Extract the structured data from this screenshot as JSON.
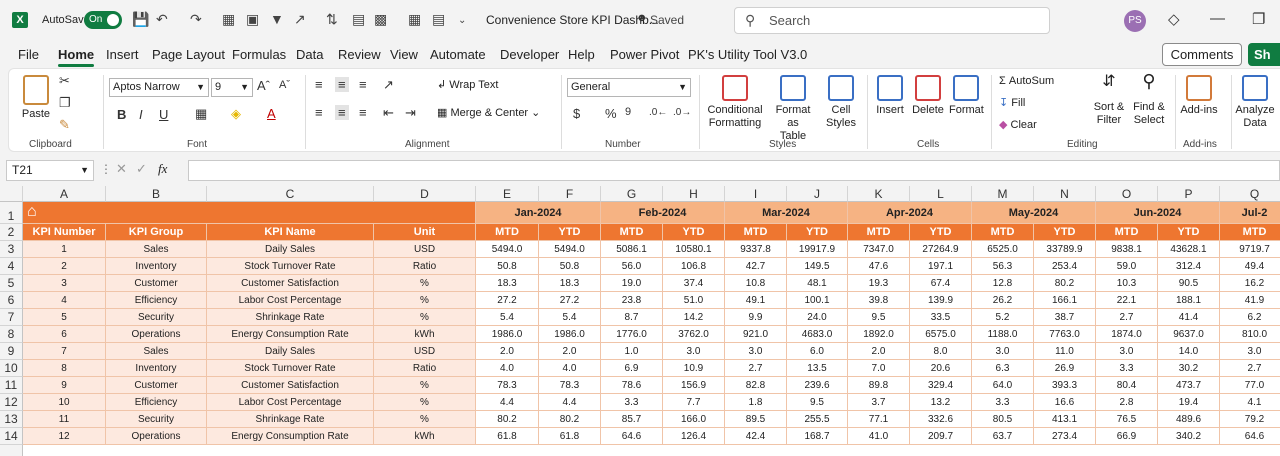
{
  "titlebar": {
    "logo": "X",
    "autosave_label": "AutoSave",
    "autosave_state": "On",
    "doc_title": "Convenience Store KPI Dashb...",
    "saved_label": "Saved",
    "search_placeholder": "Search",
    "avatar_initials": "PS"
  },
  "menu": {
    "items": [
      "File",
      "Home",
      "Insert",
      "Page Layout",
      "Formulas",
      "Data",
      "Review",
      "View",
      "Automate",
      "Developer",
      "Help",
      "Power Pivot",
      "PK's Utility Tool V3.0"
    ],
    "active": "Home",
    "comments_label": "Comments",
    "share_label": "Sh"
  },
  "ribbon": {
    "clipboard": {
      "paste": "Paste",
      "label": "Clipboard"
    },
    "font": {
      "name": "Aptos Narrow",
      "size": "9",
      "label": "Font"
    },
    "alignment": {
      "wrap": "Wrap Text",
      "merge": "Merge & Center",
      "label": "Alignment"
    },
    "number": {
      "format": "General",
      "label": "Number"
    },
    "styles": {
      "conditional": "Conditional",
      "conditional2": "Formatting",
      "format_as": "Format as",
      "format_as2": "Table",
      "cell": "Cell",
      "cell2": "Styles",
      "label": "Styles"
    },
    "cells": {
      "insert": "Insert",
      "delete": "Delete",
      "format": "Format",
      "label": "Cells"
    },
    "editing": {
      "autosum": "AutoSum",
      "fill": "Fill",
      "clear": "Clear",
      "sort": "Sort &",
      "sort2": "Filter",
      "find": "Find &",
      "find2": "Select",
      "label": "Editing"
    },
    "addins": {
      "addins": "Add-ins",
      "label": "Add-ins"
    },
    "analyze": {
      "line1": "Analyze",
      "line2": "Data"
    }
  },
  "formula_bar": {
    "cell_ref": "T21",
    "fx": "fx"
  },
  "grid": {
    "columns": [
      "A",
      "B",
      "C",
      "D",
      "E",
      "F",
      "G",
      "H",
      "I",
      "J",
      "K",
      "L",
      "M",
      "N",
      "O",
      "P",
      "Q"
    ],
    "row_numbers": [
      "1",
      "2",
      "3",
      "4",
      "5",
      "6",
      "7",
      "8",
      "9",
      "10",
      "11",
      "12",
      "13",
      "14"
    ],
    "months": [
      "Jan-2024",
      "Feb-2024",
      "Mar-2024",
      "Apr-2024",
      "May-2024",
      "Jun-2024",
      "Jul-2"
    ],
    "headers": [
      "KPI Number",
      "KPI Group",
      "KPI Name",
      "Unit"
    ],
    "mtd": "MTD",
    "ytd": "YTD",
    "rows": [
      [
        "1",
        "Sales",
        "Daily Sales",
        "USD",
        "5494.0",
        "5494.0",
        "5086.1",
        "10580.1",
        "9337.8",
        "19917.9",
        "7347.0",
        "27264.9",
        "6525.0",
        "33789.9",
        "9838.1",
        "43628.1",
        "9719.7"
      ],
      [
        "2",
        "Inventory",
        "Stock Turnover Rate",
        "Ratio",
        "50.8",
        "50.8",
        "56.0",
        "106.8",
        "42.7",
        "149.5",
        "47.6",
        "197.1",
        "56.3",
        "253.4",
        "59.0",
        "312.4",
        "49.4"
      ],
      [
        "3",
        "Customer",
        "Customer Satisfaction",
        "%",
        "18.3",
        "18.3",
        "19.0",
        "37.4",
        "10.8",
        "48.1",
        "19.3",
        "67.4",
        "12.8",
        "80.2",
        "10.3",
        "90.5",
        "16.2"
      ],
      [
        "4",
        "Efficiency",
        "Labor Cost Percentage",
        "%",
        "27.2",
        "27.2",
        "23.8",
        "51.0",
        "49.1",
        "100.1",
        "39.8",
        "139.9",
        "26.2",
        "166.1",
        "22.1",
        "188.1",
        "41.9"
      ],
      [
        "5",
        "Security",
        "Shrinkage Rate",
        "%",
        "5.4",
        "5.4",
        "8.7",
        "14.2",
        "9.9",
        "24.0",
        "9.5",
        "33.5",
        "5.2",
        "38.7",
        "2.7",
        "41.4",
        "6.2"
      ],
      [
        "6",
        "Operations",
        "Energy Consumption Rate",
        "kWh",
        "1986.0",
        "1986.0",
        "1776.0",
        "3762.0",
        "921.0",
        "4683.0",
        "1892.0",
        "6575.0",
        "1188.0",
        "7763.0",
        "1874.0",
        "9637.0",
        "810.0"
      ],
      [
        "7",
        "Sales",
        "Daily Sales",
        "USD",
        "2.0",
        "2.0",
        "1.0",
        "3.0",
        "3.0",
        "6.0",
        "2.0",
        "8.0",
        "3.0",
        "11.0",
        "3.0",
        "14.0",
        "3.0"
      ],
      [
        "8",
        "Inventory",
        "Stock Turnover Rate",
        "Ratio",
        "4.0",
        "4.0",
        "6.9",
        "10.9",
        "2.7",
        "13.5",
        "7.0",
        "20.6",
        "6.3",
        "26.9",
        "3.3",
        "30.2",
        "2.7"
      ],
      [
        "9",
        "Customer",
        "Customer Satisfaction",
        "%",
        "78.3",
        "78.3",
        "78.6",
        "156.9",
        "82.8",
        "239.6",
        "89.8",
        "329.4",
        "64.0",
        "393.3",
        "80.4",
        "473.7",
        "77.0"
      ],
      [
        "10",
        "Efficiency",
        "Labor Cost Percentage",
        "%",
        "4.4",
        "4.4",
        "3.3",
        "7.7",
        "1.8",
        "9.5",
        "3.7",
        "13.2",
        "3.3",
        "16.6",
        "2.8",
        "19.4",
        "4.1"
      ],
      [
        "11",
        "Security",
        "Shrinkage Rate",
        "%",
        "80.2",
        "80.2",
        "85.7",
        "166.0",
        "89.5",
        "255.5",
        "77.1",
        "332.6",
        "80.5",
        "413.1",
        "76.5",
        "489.6",
        "79.2"
      ],
      [
        "12",
        "Operations",
        "Energy Consumption Rate",
        "kWh",
        "61.8",
        "61.8",
        "64.6",
        "126.4",
        "42.4",
        "168.7",
        "41.0",
        "209.7",
        "63.7",
        "273.4",
        "66.9",
        "340.2",
        "64.6"
      ]
    ]
  }
}
